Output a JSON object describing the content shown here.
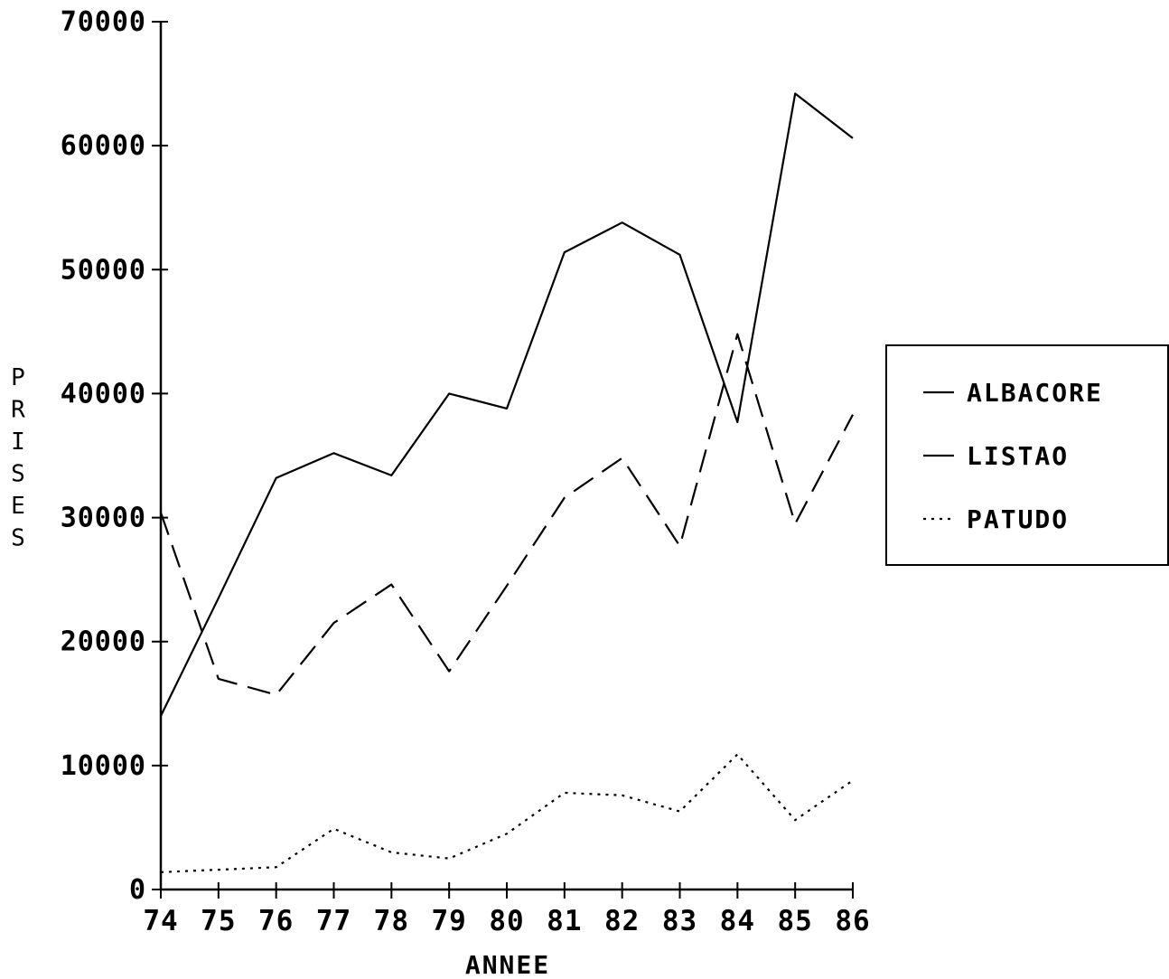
{
  "chart_data": {
    "type": "line",
    "x": [
      74,
      75,
      76,
      77,
      78,
      79,
      80,
      81,
      82,
      83,
      84,
      85,
      86
    ],
    "categories": [
      "74",
      "75",
      "76",
      "77",
      "78",
      "79",
      "80",
      "81",
      "82",
      "83",
      "84",
      "85",
      "86"
    ],
    "series": [
      {
        "name": "ALBACORE",
        "style": "solid",
        "values": [
          14000,
          23500,
          33200,
          35200,
          33400,
          40000,
          38800,
          51400,
          53800,
          51200,
          37700,
          64200,
          60600
        ]
      },
      {
        "name": "LISTAO",
        "style": "dashed",
        "values": [
          30400,
          17000,
          15700,
          21500,
          24600,
          17600,
          24500,
          31600,
          34800,
          27700,
          44800,
          29500,
          38300
        ]
      },
      {
        "name": "PATUDO",
        "style": "dotted",
        "values": [
          1400,
          1600,
          1800,
          4900,
          3000,
          2500,
          4500,
          7800,
          7600,
          6300,
          10900,
          5600,
          8800
        ]
      }
    ],
    "yticks": [
      "0",
      "10000",
      "20000",
      "30000",
      "40000",
      "50000",
      "60000",
      "70000"
    ],
    "ylim": [
      0,
      70000
    ],
    "xlim": [
      74,
      86
    ],
    "xlabel": "ANNEE",
    "ylabel": "PRISES",
    "grid": false,
    "legend": "right",
    "color": "#000000"
  }
}
